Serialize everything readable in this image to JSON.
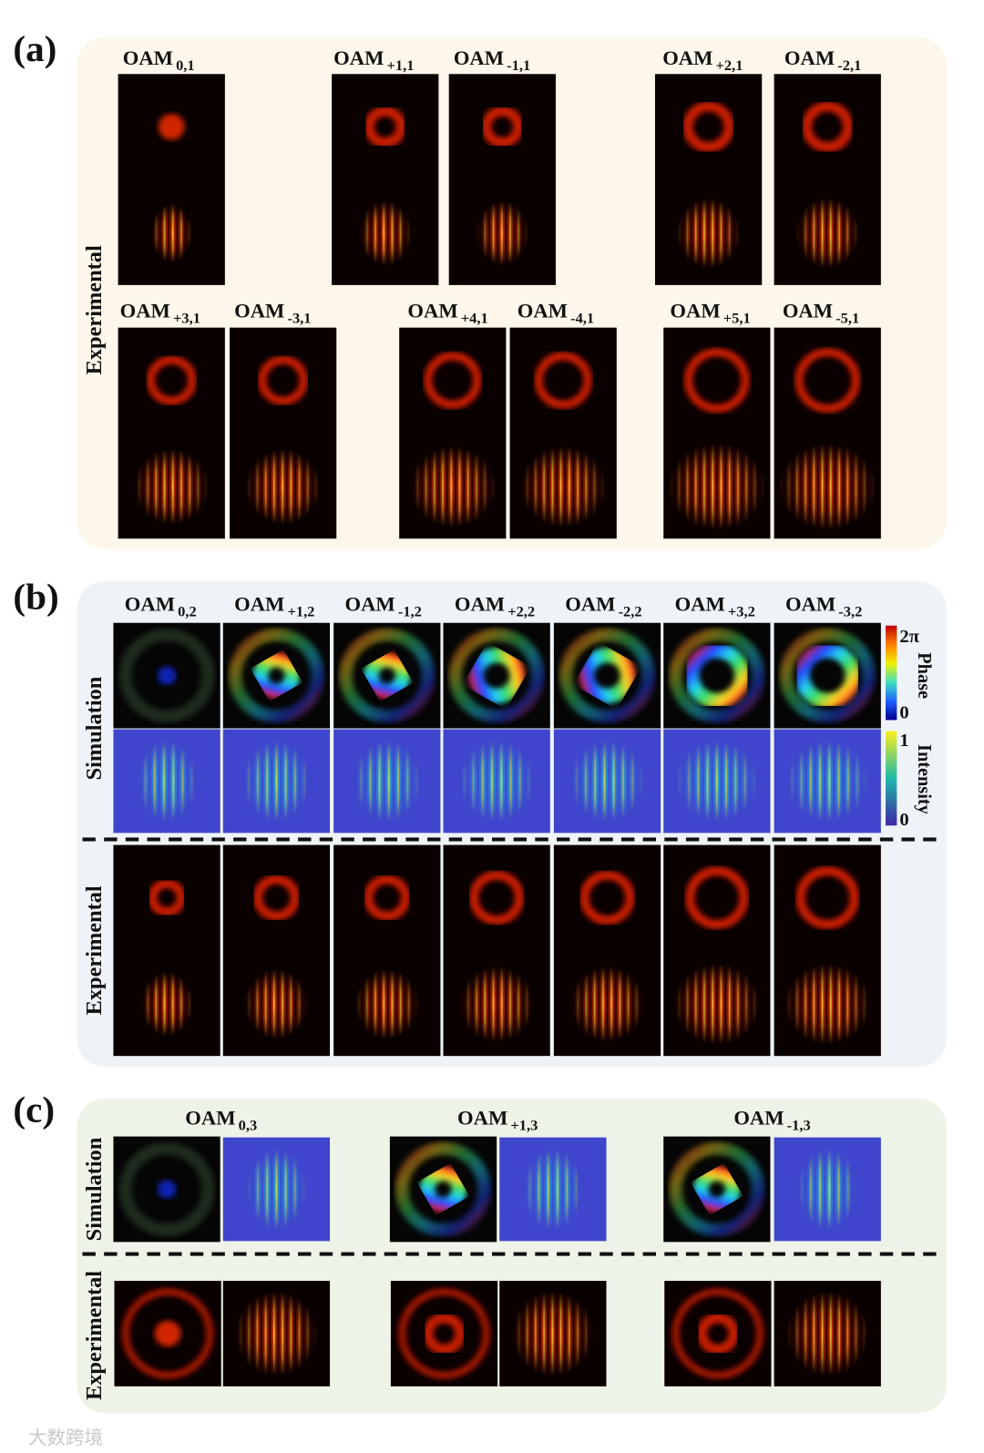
{
  "panel_a": {
    "tag": "(a)",
    "row_label": "Experimental",
    "labels": [
      {
        "base": "OAM",
        "sub": "0,1"
      },
      {
        "base": "OAM",
        "sub": "+1,1"
      },
      {
        "base": "OAM",
        "sub": "-1,1"
      },
      {
        "base": "OAM",
        "sub": "+2,1"
      },
      {
        "base": "OAM",
        "sub": "-2,1"
      },
      {
        "base": "OAM",
        "sub": "+3,1"
      },
      {
        "base": "OAM",
        "sub": "-3,1"
      },
      {
        "base": "OAM",
        "sub": "+4,1"
      },
      {
        "base": "OAM",
        "sub": "-4,1"
      },
      {
        "base": "OAM",
        "sub": "+5,1"
      },
      {
        "base": "OAM",
        "sub": "-5,1"
      }
    ]
  },
  "panel_b": {
    "tag": "(b)",
    "sim_label": "Simulation",
    "exp_label": "Experimental",
    "labels": [
      {
        "base": "OAM",
        "sub": "0,2"
      },
      {
        "base": "OAM",
        "sub": "+1,2"
      },
      {
        "base": "OAM",
        "sub": "-1,2"
      },
      {
        "base": "OAM",
        "sub": "+2,2"
      },
      {
        "base": "OAM",
        "sub": "-2,2"
      },
      {
        "base": "OAM",
        "sub": "+3,2"
      },
      {
        "base": "OAM",
        "sub": "-3,2"
      }
    ],
    "phase_bar": {
      "title": "Phase",
      "max": "2π",
      "min": "0"
    },
    "intensity_bar": {
      "title": "Intensity",
      "max": "1",
      "min": "0"
    }
  },
  "panel_c": {
    "tag": "(c)",
    "sim_label": "Simulation",
    "exp_label": "Experimental",
    "labels": [
      {
        "base": "OAM",
        "sub": "0,3"
      },
      {
        "base": "OAM",
        "sub": "+1,3"
      },
      {
        "base": "OAM",
        "sub": "-1,3"
      }
    ]
  },
  "watermark": "大数跨境"
}
